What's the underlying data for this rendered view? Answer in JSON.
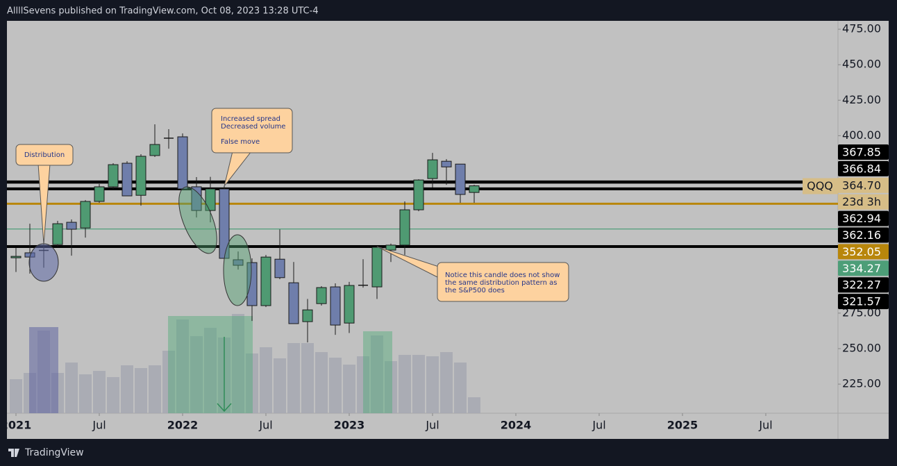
{
  "chart_data": {
    "type": "candlestick",
    "header": "AllllSevens published on TradingView.com, Oct 08, 2023 13:28 UTC-4",
    "footer": "TradingView",
    "symbol": "QQQ",
    "countdown": "23d 3h",
    "last_price": {
      "value": 364.7,
      "label": "364.70"
    },
    "up_color": "#4f9a72",
    "down_color": "#6f7eab",
    "volume_color": "#a6a8b2",
    "open": [
      314,
      317.5,
      319.4,
      323.3,
      339,
      335,
      353.7,
      364,
      380.6,
      358,
      386,
      398,
      399.2,
      364,
      347.3,
      362.5,
      312.6,
      310.6,
      280.3,
      313,
      296.4,
      269,
      281.7,
      293.5,
      268,
      294.5,
      293.5,
      319.4,
      322.9,
      347.8,
      369.8,
      382,
      380,
      360
    ],
    "high": [
      321,
      338,
      329,
      340,
      341,
      354.6,
      366,
      380.6,
      382,
      387,
      408,
      404.6,
      401.6,
      370.8,
      371,
      364.5,
      318.4,
      313.6,
      316,
      334,
      311,
      285,
      294,
      296,
      297,
      313,
      321.9,
      324,
      353.7,
      369.3,
      387.9,
      383.5,
      380,
      365.4
    ],
    "low": [
      304,
      302.8,
      307,
      321.8,
      315.5,
      328.2,
      352.7,
      362.5,
      357.6,
      350.7,
      385,
      390.8,
      362.5,
      342.4,
      339,
      313.6,
      305.7,
      269.5,
      279.3,
      298.9,
      267.6,
      254.4,
      280.3,
      259.7,
      261,
      293,
      285,
      311,
      316,
      346.8,
      363.5,
      365.4,
      352.7,
      352.7
    ],
    "close": [
      315,
      314.5,
      319,
      338,
      334.1,
      353.7,
      364,
      379.6,
      357.6,
      385.5,
      393.8,
      398.5,
      362.5,
      347.3,
      362.5,
      313.6,
      308.7,
      280.3,
      314.5,
      300,
      267.6,
      277.3,
      293,
      266.6,
      294.5,
      294.8,
      321.4,
      322.9,
      347.8,
      368.8,
      383,
      378,
      358.6,
      364.7
    ],
    "volume": [
      49,
      58,
      119,
      58,
      73,
      56,
      61,
      52,
      69,
      65,
      69,
      90,
      135,
      111,
      123,
      109,
      143,
      86,
      95,
      79,
      101,
      101,
      88,
      80,
      70,
      82,
      112,
      75,
      84,
      84,
      82,
      88,
      73,
      23
    ],
    "ylim": [
      204.5,
      480.9
    ],
    "yticks": [
      {
        "value": 475,
        "label": "475.00"
      },
      {
        "value": 450,
        "label": "450.00"
      },
      {
        "value": 425,
        "label": "425.00"
      },
      {
        "value": 400,
        "label": "400.00"
      },
      {
        "value": 275,
        "label": "275.00"
      },
      {
        "value": 250,
        "label": "250.00"
      },
      {
        "value": 225,
        "label": "225.00"
      }
    ],
    "xticks": [
      {
        "value": 0,
        "label": "2021"
      },
      {
        "value": 6,
        "label": "Jul"
      },
      {
        "value": 12,
        "label": "2022"
      },
      {
        "value": 18,
        "label": "Jul"
      },
      {
        "value": 24,
        "label": "2023"
      },
      {
        "value": 30,
        "label": "Jul"
      },
      {
        "value": 36,
        "label": "2024"
      },
      {
        "value": 42,
        "label": "Jul"
      },
      {
        "value": 48,
        "label": "2025"
      },
      {
        "value": 54,
        "label": "Jul"
      }
    ],
    "levels": [
      {
        "value": 367.85,
        "label": "367.85",
        "color": "#000000"
      },
      {
        "value": 366.84,
        "label": "366.84",
        "color": "#000000"
      },
      {
        "value": 362.94,
        "label": "362.94",
        "color": "#000000"
      },
      {
        "value": 362.16,
        "label": "362.16",
        "color": "#000000"
      },
      {
        "value": 352.05,
        "label": "352.05",
        "color": "#b8860b"
      },
      {
        "value": 334.27,
        "label": "334.27",
        "color": "#4d9e78"
      },
      {
        "value": 322.27,
        "label": "322.27",
        "color": "#000000"
      },
      {
        "value": 321.57,
        "label": "321.57",
        "color": "#000000"
      }
    ],
    "annotations": [
      {
        "lines": [
          "Distribution"
        ]
      },
      {
        "lines": [
          "Increased spread",
          "Decreased volume",
          "False move"
        ]
      },
      {
        "lines": [
          "Notice this candle does not show",
          "the same distribution pattern as",
          "the S&P500 does"
        ]
      }
    ]
  }
}
